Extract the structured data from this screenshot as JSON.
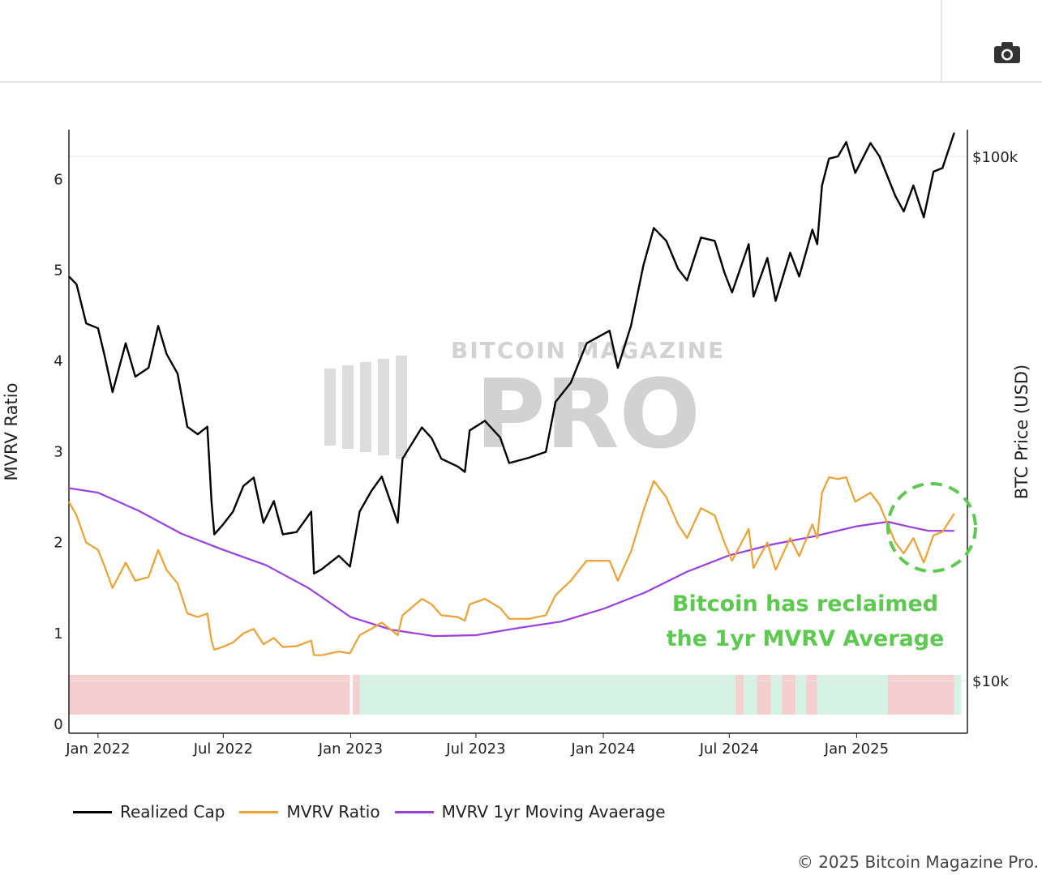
{
  "camera": {
    "icon": "camera-icon"
  },
  "chart_data": {
    "type": "line",
    "title": "",
    "ylabel_left": "MVRV Ratio",
    "ylabel_right": "BTC Price (USD)",
    "y_left_ticks": [
      0,
      1,
      2,
      3,
      4,
      5,
      6
    ],
    "y_left_range": [
      -0.1,
      6.55
    ],
    "y_right_ticks": [
      {
        "value": 10000,
        "label": "$10k"
      },
      {
        "value": 100000,
        "label": "$100k"
      }
    ],
    "y_right_scale": "log",
    "x_ticks": [
      "Jan 2022",
      "Jul 2022",
      "Jan 2023",
      "Jul 2023",
      "Jan 2024",
      "Jul 2024",
      "Jan 2025"
    ],
    "x_range": [
      "2021-11-20",
      "2025-06-10"
    ],
    "legend": "bottom",
    "series": [
      {
        "name": "Realized Cap",
        "axis": "right",
        "color": "#000000",
        "points": [
          [
            "2021-11-20",
            59000
          ],
          [
            "2021-12-01",
            57000
          ],
          [
            "2021-12-15",
            48000
          ],
          [
            "2022-01-01",
            47000
          ],
          [
            "2022-01-10",
            42000
          ],
          [
            "2022-01-22",
            35500
          ],
          [
            "2022-02-10",
            44000
          ],
          [
            "2022-02-24",
            38000
          ],
          [
            "2022-03-15",
            39500
          ],
          [
            "2022-03-29",
            47500
          ],
          [
            "2022-04-10",
            42000
          ],
          [
            "2022-04-26",
            38500
          ],
          [
            "2022-05-10",
            30500
          ],
          [
            "2022-05-25",
            29500
          ],
          [
            "2022-06-08",
            30500
          ],
          [
            "2022-06-14",
            22000
          ],
          [
            "2022-06-18",
            19000
          ],
          [
            "2022-06-30",
            19800
          ],
          [
            "2022-07-15",
            21000
          ],
          [
            "2022-07-30",
            23500
          ],
          [
            "2022-08-14",
            24400
          ],
          [
            "2022-08-28",
            20000
          ],
          [
            "2022-09-12",
            22000
          ],
          [
            "2022-09-25",
            19000
          ],
          [
            "2022-10-15",
            19200
          ],
          [
            "2022-11-05",
            21000
          ],
          [
            "2022-11-09",
            16000
          ],
          [
            "2022-11-20",
            16300
          ],
          [
            "2022-12-15",
            17300
          ],
          [
            "2022-12-31",
            16500
          ],
          [
            "2023-01-14",
            21000
          ],
          [
            "2023-01-31",
            23000
          ],
          [
            "2023-02-15",
            24500
          ],
          [
            "2023-03-10",
            20000
          ],
          [
            "2023-03-17",
            26500
          ],
          [
            "2023-04-14",
            30400
          ],
          [
            "2023-04-28",
            29000
          ],
          [
            "2023-05-12",
            26500
          ],
          [
            "2023-06-05",
            25600
          ],
          [
            "2023-06-15",
            25000
          ],
          [
            "2023-06-22",
            30000
          ],
          [
            "2023-07-14",
            31300
          ],
          [
            "2023-08-05",
            29100
          ],
          [
            "2023-08-18",
            26000
          ],
          [
            "2023-09-15",
            26600
          ],
          [
            "2023-10-10",
            27300
          ],
          [
            "2023-10-24",
            34000
          ],
          [
            "2023-11-15",
            37000
          ],
          [
            "2023-12-08",
            44000
          ],
          [
            "2024-01-10",
            46500
          ],
          [
            "2024-01-22",
            39500
          ],
          [
            "2024-02-10",
            47500
          ],
          [
            "2024-02-28",
            62000
          ],
          [
            "2024-03-14",
            73000
          ],
          [
            "2024-04-01",
            69000
          ],
          [
            "2024-04-18",
            61000
          ],
          [
            "2024-05-01",
            58000
          ],
          [
            "2024-05-21",
            70000
          ],
          [
            "2024-06-10",
            69000
          ],
          [
            "2024-06-24",
            60000
          ],
          [
            "2024-07-05",
            55000
          ],
          [
            "2024-07-29",
            68000
          ],
          [
            "2024-08-05",
            54000
          ],
          [
            "2024-08-25",
            64000
          ],
          [
            "2024-09-06",
            53000
          ],
          [
            "2024-09-27",
            65500
          ],
          [
            "2024-10-10",
            59000
          ],
          [
            "2024-10-29",
            72500
          ],
          [
            "2024-11-05",
            68000
          ],
          [
            "2024-11-12",
            88000
          ],
          [
            "2024-11-22",
            99000
          ],
          [
            "2024-12-05",
            100000
          ],
          [
            "2024-12-17",
            106500
          ],
          [
            "2024-12-30",
            93000
          ],
          [
            "2025-01-21",
            106000
          ],
          [
            "2025-02-03",
            100000
          ],
          [
            "2025-02-26",
            84000
          ],
          [
            "2025-03-10",
            78500
          ],
          [
            "2025-03-24",
            88000
          ],
          [
            "2025-04-08",
            76500
          ],
          [
            "2025-04-22",
            93500
          ],
          [
            "2025-05-05",
            95000
          ],
          [
            "2025-05-22",
            111000
          ]
        ]
      },
      {
        "name": "MVRV Ratio",
        "axis": "left",
        "color": "#f0a030",
        "points": [
          [
            "2021-11-20",
            2.45
          ],
          [
            "2021-12-01",
            2.3
          ],
          [
            "2021-12-15",
            2.0
          ],
          [
            "2022-01-01",
            1.92
          ],
          [
            "2022-01-10",
            1.75
          ],
          [
            "2022-01-22",
            1.5
          ],
          [
            "2022-02-10",
            1.78
          ],
          [
            "2022-02-24",
            1.58
          ],
          [
            "2022-03-15",
            1.62
          ],
          [
            "2022-03-29",
            1.92
          ],
          [
            "2022-04-10",
            1.7
          ],
          [
            "2022-04-26",
            1.55
          ],
          [
            "2022-05-10",
            1.22
          ],
          [
            "2022-05-25",
            1.18
          ],
          [
            "2022-06-08",
            1.22
          ],
          [
            "2022-06-14",
            0.92
          ],
          [
            "2022-06-18",
            0.82
          ],
          [
            "2022-06-30",
            0.85
          ],
          [
            "2022-07-15",
            0.9
          ],
          [
            "2022-07-30",
            1.0
          ],
          [
            "2022-08-14",
            1.05
          ],
          [
            "2022-08-28",
            0.88
          ],
          [
            "2022-09-12",
            0.95
          ],
          [
            "2022-09-25",
            0.85
          ],
          [
            "2022-10-15",
            0.86
          ],
          [
            "2022-11-05",
            0.92
          ],
          [
            "2022-11-09",
            0.76
          ],
          [
            "2022-11-20",
            0.76
          ],
          [
            "2022-12-15",
            0.8
          ],
          [
            "2022-12-31",
            0.78
          ],
          [
            "2023-01-14",
            0.98
          ],
          [
            "2023-01-31",
            1.05
          ],
          [
            "2023-02-15",
            1.12
          ],
          [
            "2023-03-10",
            0.98
          ],
          [
            "2023-03-17",
            1.2
          ],
          [
            "2023-04-14",
            1.38
          ],
          [
            "2023-04-28",
            1.32
          ],
          [
            "2023-05-12",
            1.2
          ],
          [
            "2023-06-05",
            1.18
          ],
          [
            "2023-06-15",
            1.14
          ],
          [
            "2023-06-22",
            1.32
          ],
          [
            "2023-07-14",
            1.38
          ],
          [
            "2023-08-05",
            1.28
          ],
          [
            "2023-08-18",
            1.16
          ],
          [
            "2023-09-15",
            1.16
          ],
          [
            "2023-10-10",
            1.2
          ],
          [
            "2023-10-24",
            1.42
          ],
          [
            "2023-11-15",
            1.58
          ],
          [
            "2023-12-08",
            1.8
          ],
          [
            "2024-01-10",
            1.8
          ],
          [
            "2024-01-22",
            1.58
          ],
          [
            "2024-02-10",
            1.9
          ],
          [
            "2024-02-28",
            2.35
          ],
          [
            "2024-03-14",
            2.68
          ],
          [
            "2024-04-01",
            2.5
          ],
          [
            "2024-04-18",
            2.2
          ],
          [
            "2024-05-01",
            2.05
          ],
          [
            "2024-05-21",
            2.38
          ],
          [
            "2024-06-10",
            2.3
          ],
          [
            "2024-06-24",
            2.0
          ],
          [
            "2024-07-05",
            1.8
          ],
          [
            "2024-07-29",
            2.15
          ],
          [
            "2024-08-05",
            1.72
          ],
          [
            "2024-08-25",
            2.0
          ],
          [
            "2024-09-06",
            1.7
          ],
          [
            "2024-09-27",
            2.05
          ],
          [
            "2024-10-10",
            1.85
          ],
          [
            "2024-10-29",
            2.2
          ],
          [
            "2024-11-05",
            2.05
          ],
          [
            "2024-11-12",
            2.55
          ],
          [
            "2024-11-22",
            2.72
          ],
          [
            "2024-12-05",
            2.7
          ],
          [
            "2024-12-17",
            2.72
          ],
          [
            "2024-12-30",
            2.45
          ],
          [
            "2025-01-21",
            2.55
          ],
          [
            "2025-02-03",
            2.42
          ],
          [
            "2025-02-26",
            2.0
          ],
          [
            "2025-03-10",
            1.88
          ],
          [
            "2025-03-24",
            2.05
          ],
          [
            "2025-04-08",
            1.78
          ],
          [
            "2025-04-22",
            2.08
          ],
          [
            "2025-05-05",
            2.12
          ],
          [
            "2025-05-22",
            2.32
          ]
        ]
      },
      {
        "name": "MVRV 1yr Moving Avaerage",
        "axis": "left",
        "color": "#9b3fe0",
        "points": [
          [
            "2021-11-20",
            2.6
          ],
          [
            "2022-01-01",
            2.55
          ],
          [
            "2022-03-01",
            2.35
          ],
          [
            "2022-05-01",
            2.1
          ],
          [
            "2022-07-01",
            1.92
          ],
          [
            "2022-09-01",
            1.75
          ],
          [
            "2022-11-01",
            1.5
          ],
          [
            "2023-01-01",
            1.18
          ],
          [
            "2023-03-01",
            1.04
          ],
          [
            "2023-05-01",
            0.97
          ],
          [
            "2023-07-01",
            0.98
          ],
          [
            "2023-09-01",
            1.06
          ],
          [
            "2023-11-01",
            1.13
          ],
          [
            "2024-01-01",
            1.27
          ],
          [
            "2024-03-01",
            1.45
          ],
          [
            "2024-05-01",
            1.68
          ],
          [
            "2024-07-01",
            1.86
          ],
          [
            "2024-09-01",
            1.98
          ],
          [
            "2024-11-01",
            2.07
          ],
          [
            "2025-01-01",
            2.18
          ],
          [
            "2025-02-15",
            2.23
          ],
          [
            "2025-03-15",
            2.18
          ],
          [
            "2025-04-15",
            2.13
          ],
          [
            "2025-05-22",
            2.13
          ]
        ]
      }
    ],
    "regime_bands": [
      {
        "from": "2021-11-20",
        "to": "2022-12-31",
        "color": "#f5cfcf"
      },
      {
        "from": "2022-12-31",
        "to": "2023-01-04",
        "color": "#ffffff"
      },
      {
        "from": "2023-01-04",
        "to": "2023-01-14",
        "color": "#f5cfcf"
      },
      {
        "from": "2023-01-14",
        "to": "2023-02-01",
        "color": "#d5f3e4"
      },
      {
        "from": "2023-02-01",
        "to": "2024-07-10",
        "color": "#d5f3e4"
      },
      {
        "from": "2024-07-10",
        "to": "2024-07-22",
        "color": "#f5cfcf"
      },
      {
        "from": "2024-07-22",
        "to": "2024-08-10",
        "color": "#d5f3e4"
      },
      {
        "from": "2024-08-10",
        "to": "2024-08-30",
        "color": "#f5cfcf"
      },
      {
        "from": "2024-08-30",
        "to": "2024-09-15",
        "color": "#d5f3e4"
      },
      {
        "from": "2024-09-15",
        "to": "2024-10-05",
        "color": "#f5cfcf"
      },
      {
        "from": "2024-10-05",
        "to": "2024-10-20",
        "color": "#d5f3e4"
      },
      {
        "from": "2024-10-20",
        "to": "2024-11-05",
        "color": "#f5cfcf"
      },
      {
        "from": "2024-11-05",
        "to": "2025-02-15",
        "color": "#d5f3e4"
      },
      {
        "from": "2025-02-15",
        "to": "2025-05-22",
        "color": "#f5cfcf"
      },
      {
        "from": "2025-05-22",
        "to": "2025-06-01",
        "color": "#d5f3e4"
      }
    ],
    "annotation": {
      "lines": [
        "Bitcoin has reclaimed",
        "the 1yr MVRV Average"
      ],
      "color": "#5cc94f"
    },
    "watermark": {
      "line1": "BITCOIN MAGAZINE",
      "line2": "PRO"
    }
  },
  "legend_items": [
    {
      "label": "Realized Cap",
      "color": "#000000"
    },
    {
      "label": "MVRV Ratio",
      "color": "#f0a030"
    },
    {
      "label": "MVRV 1yr Moving Avaerage",
      "color": "#9b3fe0"
    }
  ],
  "copyright": "© 2025 Bitcoin Magazine Pro."
}
